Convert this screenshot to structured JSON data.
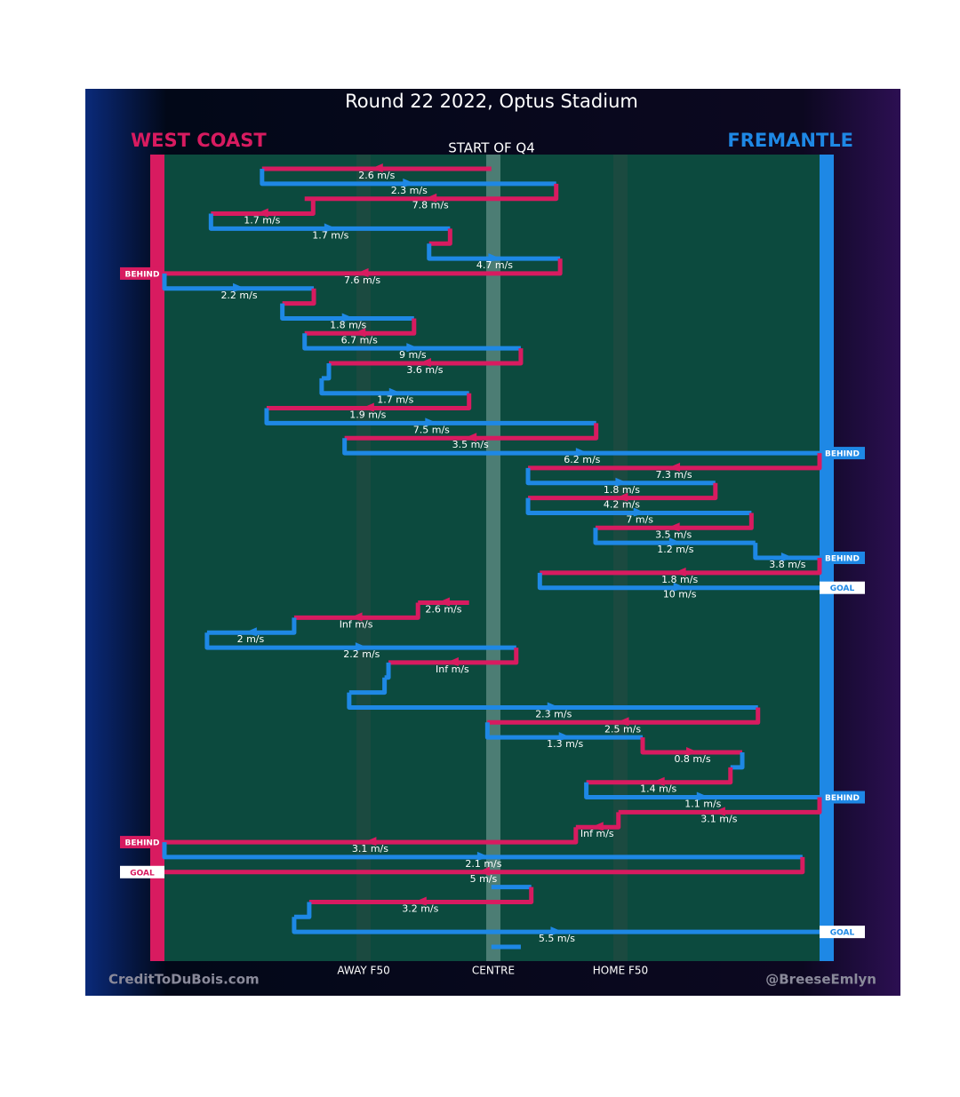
{
  "chart_data": {
    "type": "possession-chain",
    "title": "Round 22 2022, Optus Stadium",
    "subtitle": "START OF Q4",
    "teams": [
      {
        "name": "WEST COAST",
        "color": "#d81b60"
      },
      {
        "name": "FREMANTLE",
        "color": "#1e88e5"
      }
    ],
    "credits": [
      "CreditToDuBois.com",
      "@BreeseEmlyn"
    ],
    "xlim": [
      0,
      100
    ],
    "xticks": [
      {
        "value": 30.4,
        "label": "AWAY F50"
      },
      {
        "value": 50.2,
        "label": "CENTRE"
      },
      {
        "value": 69.6,
        "label": "HOME F50"
      }
    ],
    "segments": [
      {
        "team": 0,
        "from": 49.9,
        "to": 14.9,
        "label": "2.6 m/s"
      },
      {
        "team": 1,
        "from": 14.9,
        "to": 59.8,
        "label": "2.3 m/s"
      },
      {
        "team": 0,
        "from": 59.8,
        "to": 21.4,
        "label": "7.8 m/s"
      },
      {
        "team": 0,
        "from": 22.7,
        "to": 7.1,
        "label": "1.7 m/s"
      },
      {
        "team": 1,
        "from": 7.1,
        "to": 43.6,
        "label": "1.7 m/s"
      },
      {
        "team": 0,
        "from": 43.6,
        "to": 40.4
      },
      {
        "team": 1,
        "from": 40.4,
        "to": 60.4,
        "label": "4.7 m/s"
      },
      {
        "team": 0,
        "from": 60.4,
        "to": 0,
        "label": "7.6 m/s",
        "outcome": "BEHIND"
      },
      {
        "team": 1,
        "from": 0,
        "to": 22.8,
        "label": "2.2 m/s"
      },
      {
        "team": 0,
        "from": 22.8,
        "to": 18
      },
      {
        "team": 1,
        "from": 18,
        "to": 38.1,
        "label": "1.8 m/s"
      },
      {
        "team": 0,
        "from": 38.1,
        "to": 21.4,
        "label": "6.7 m/s"
      },
      {
        "team": 1,
        "from": 21.4,
        "to": 54.4,
        "label": "9 m/s"
      },
      {
        "team": 0,
        "from": 54.4,
        "to": 25.1,
        "label": "3.6 m/s"
      },
      {
        "team": 1,
        "from": 25.1,
        "to": 24
      },
      {
        "team": 1,
        "from": 24,
        "to": 46.5,
        "label": "1.7 m/s"
      },
      {
        "team": 0,
        "from": 46.5,
        "to": 15.6,
        "label": "1.9 m/s"
      },
      {
        "team": 1,
        "from": 15.6,
        "to": 65.9,
        "label": "7.5 m/s"
      },
      {
        "team": 0,
        "from": 65.9,
        "to": 27.5,
        "label": "3.5 m/s"
      },
      {
        "team": 1,
        "from": 27.5,
        "to": 100,
        "label": "6.2 m/s",
        "outcome": "BEHIND"
      },
      {
        "team": 0,
        "from": 100,
        "to": 55.5,
        "label": "7.3 m/s"
      },
      {
        "team": 1,
        "from": 55.5,
        "to": 84.1,
        "label": "1.8 m/s"
      },
      {
        "team": 0,
        "from": 84.1,
        "to": 55.5,
        "label": "4.2 m/s"
      },
      {
        "team": 1,
        "from": 55.5,
        "to": 89.6,
        "label": "7 m/s"
      },
      {
        "team": 0,
        "from": 89.6,
        "to": 65.8,
        "label": "3.5 m/s"
      },
      {
        "team": 1,
        "from": 65.8,
        "to": 90.2,
        "label": "1.2 m/s"
      },
      {
        "team": 1,
        "from": 90.2,
        "to": 100,
        "label": "3.8 m/s",
        "outcome": "BEHIND"
      },
      {
        "team": 0,
        "from": 100,
        "to": 57.3,
        "label": "1.8 m/s"
      },
      {
        "team": 1,
        "from": 57.3,
        "to": 100,
        "label": "10 m/s",
        "outcome": "GOAL"
      },
      {
        "team": 0,
        "from": 46.5,
        "to": 38.7,
        "label": "2.6 m/s"
      },
      {
        "team": 0,
        "from": 38.7,
        "to": 19.8,
        "label": "Inf m/s"
      },
      {
        "team": 1,
        "from": 19.8,
        "to": 6.5,
        "label": "2 m/s"
      },
      {
        "team": 1,
        "from": 6.5,
        "to": 53.7,
        "label": "2.2 m/s"
      },
      {
        "team": 0,
        "from": 53.7,
        "to": 34.2,
        "label": "Inf m/s"
      },
      {
        "team": 1,
        "from": 34.2,
        "to": 33.6
      },
      {
        "team": 1,
        "from": 33.6,
        "to": 28.2
      },
      {
        "team": 1,
        "from": 28.2,
        "to": 90.6,
        "label": "2.3 m/s"
      },
      {
        "team": 0,
        "from": 90.6,
        "to": 49.3,
        "label": "2.5 m/s"
      },
      {
        "team": 1,
        "from": 49.3,
        "to": 73,
        "label": "1.3 m/s"
      },
      {
        "team": 0,
        "from": 73,
        "to": 88.2,
        "label": "0.8 m/s"
      },
      {
        "team": 1,
        "from": 88.2,
        "to": 86.4
      },
      {
        "team": 0,
        "from": 86.4,
        "to": 64.4,
        "label": "1.4 m/s"
      },
      {
        "team": 1,
        "from": 64.4,
        "to": 100,
        "label": "1.1 m/s",
        "outcome": "BEHIND"
      },
      {
        "team": 0,
        "from": 100,
        "to": 69.3,
        "label": "3.1 m/s"
      },
      {
        "team": 0,
        "from": 69.3,
        "to": 62.8,
        "label": "Inf m/s"
      },
      {
        "team": 0,
        "from": 62.8,
        "to": 0,
        "label": "3.1 m/s",
        "outcome": "BEHIND"
      },
      {
        "team": 1,
        "from": 0,
        "to": 97.4,
        "label": "2.1 m/s"
      },
      {
        "team": 0,
        "from": 97.4,
        "to": 0,
        "label": "5 m/s",
        "outcome": "GOAL"
      },
      {
        "team": 1,
        "from": 49.9,
        "to": 56
      },
      {
        "team": 0,
        "from": 56,
        "to": 22.1,
        "label": "3.2 m/s"
      },
      {
        "team": 1,
        "from": 22.1,
        "to": 19.8
      },
      {
        "team": 1,
        "from": 19.8,
        "to": 100,
        "label": "5.5 m/s",
        "outcome": "GOAL"
      },
      {
        "team": 1,
        "from": 49.9,
        "to": 54.4
      }
    ]
  }
}
